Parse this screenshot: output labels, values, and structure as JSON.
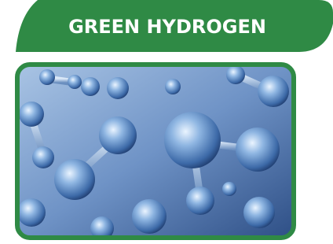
{
  "banner": {
    "title": "GREEN HYDROGEN"
  }
}
